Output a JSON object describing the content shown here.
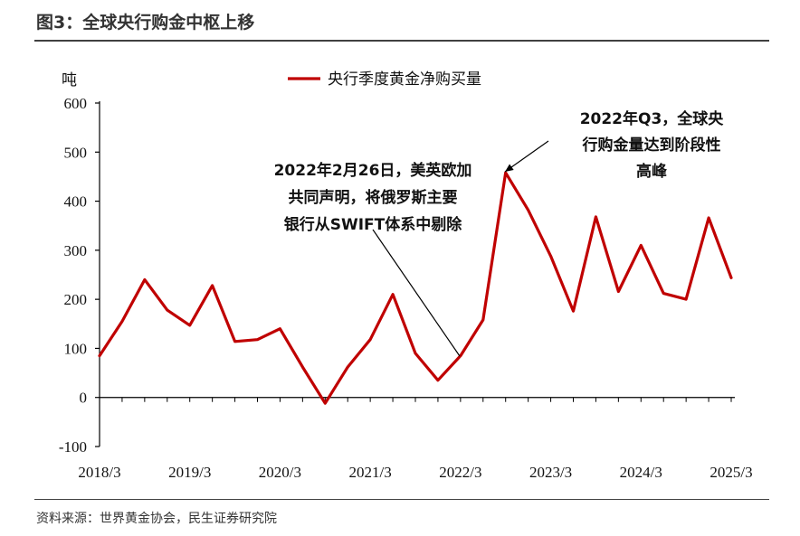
{
  "header": {
    "title": "图3：全球央行购金中枢上移"
  },
  "footer": {
    "source": "资料来源：世界黄金协会，民生证券研究院"
  },
  "colors": {
    "series": "#C00000",
    "axis": "#000000",
    "rule": "#404040"
  },
  "chart_data": {
    "type": "line",
    "title": "",
    "xlabel": "",
    "ylabel": "吨",
    "ylim": [
      -100,
      600
    ],
    "yticks": [
      600,
      500,
      400,
      300,
      200,
      100,
      0,
      -100
    ],
    "xtick_labels": [
      "2018/3",
      "2019/3",
      "2020/3",
      "2021/3",
      "2022/3",
      "2023/3",
      "2024/3",
      "2025/3"
    ],
    "grid": false,
    "legend_position": "top-center",
    "series": [
      {
        "name": "央行季度黄金净购买量",
        "color": "#C00000",
        "x": [
          "2018/3",
          "2018/6",
          "2018/9",
          "2018/12",
          "2019/3",
          "2019/6",
          "2019/9",
          "2019/12",
          "2020/3",
          "2020/6",
          "2020/9",
          "2020/12",
          "2021/3",
          "2021/6",
          "2021/9",
          "2021/12",
          "2022/3",
          "2022/6",
          "2022/9",
          "2022/12",
          "2023/3",
          "2023/6",
          "2023/9",
          "2023/12",
          "2024/3",
          "2024/6",
          "2024/9",
          "2024/12",
          "2025/3"
        ],
        "values": [
          85,
          155,
          240,
          178,
          147,
          228,
          114,
          118,
          140,
          62,
          -12,
          62,
          118,
          210,
          90,
          35,
          85,
          158,
          458,
          382,
          288,
          176,
          368,
          216,
          310,
          212,
          200,
          366,
          244
        ]
      }
    ],
    "annotations": [
      {
        "lines": [
          "2022年2月26日，美英欧加",
          "共同声明，将俄罗斯主要",
          "银行从SWIFT体系中剔除"
        ],
        "target_x": "2022/3"
      },
      {
        "lines": [
          "2022年Q3，全球央",
          "行购金量达到阶段性",
          "高峰"
        ],
        "target_x": "2022/9"
      }
    ]
  }
}
